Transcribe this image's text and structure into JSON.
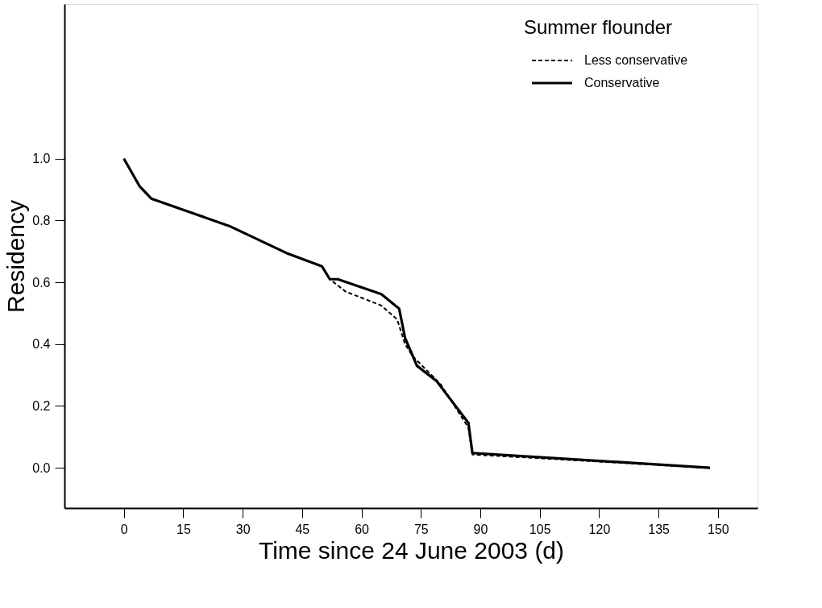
{
  "chart_data": {
    "type": "line",
    "xlabel": "Time since 24 June 2003 (d)",
    "ylabel": "Residency",
    "legend_title": "Summer flounder",
    "xlim": [
      -15,
      160
    ],
    "ylim": [
      -0.13,
      1.5
    ],
    "xticks": [
      0,
      15,
      30,
      45,
      60,
      75,
      90,
      105,
      120,
      135,
      150
    ],
    "yticks": [
      {
        "value": 0,
        "label": "0.0"
      },
      {
        "value": 0.2,
        "label": "0.2"
      },
      {
        "value": 0.4,
        "label": "0.4"
      },
      {
        "value": 0.6,
        "label": "0.6"
      },
      {
        "value": 0.8,
        "label": "0.8"
      },
      {
        "value": 1,
        "label": "1.0"
      }
    ],
    "grid": false,
    "legend": "top right",
    "marker": "none",
    "series": [
      {
        "name": "Less conservative",
        "color": "#000000",
        "line_style": "dashed",
        "x": [
          0,
          4,
          7,
          16,
          27,
          41,
          50,
          52,
          56,
          65,
          69,
          71,
          73,
          80,
          87,
          88,
          148
        ],
        "values": [
          1.0,
          0.91,
          0.87,
          0.83,
          0.78,
          0.695,
          0.652,
          0.61,
          0.57,
          0.525,
          0.48,
          0.4,
          0.36,
          0.27,
          0.13,
          0.043,
          0.0
        ]
      },
      {
        "name": "Conservative",
        "color": "#000000",
        "line_style": "solid",
        "x": [
          0,
          4,
          7,
          16,
          27,
          41,
          50,
          52,
          54,
          65,
          69.5,
          71,
          74,
          79,
          87,
          88,
          148
        ],
        "values": [
          1.0,
          0.91,
          0.87,
          0.83,
          0.78,
          0.695,
          0.652,
          0.61,
          0.61,
          0.562,
          0.515,
          0.42,
          0.33,
          0.28,
          0.145,
          0.048,
          0.0
        ]
      }
    ]
  }
}
